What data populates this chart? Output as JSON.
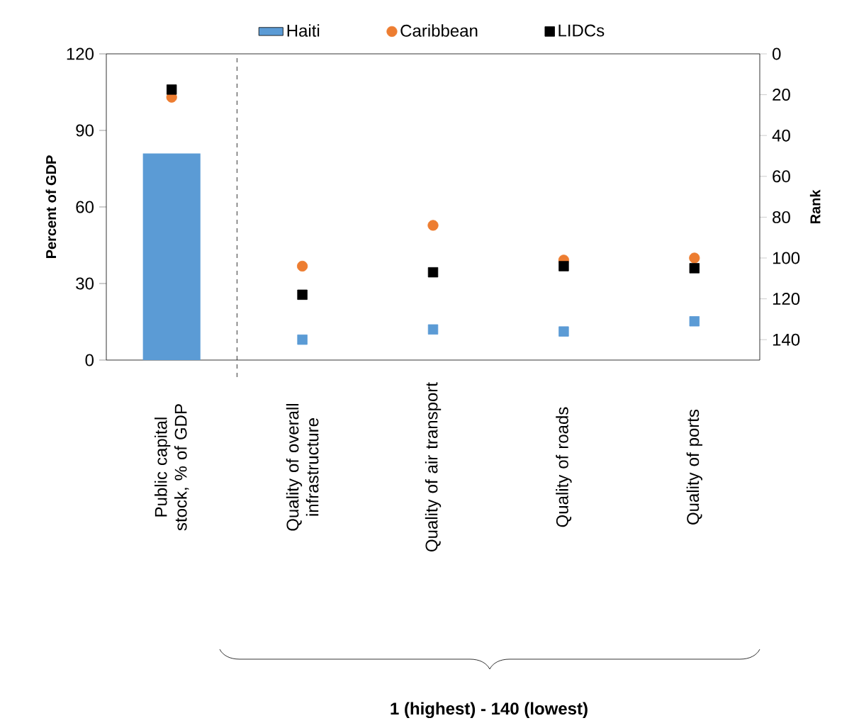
{
  "chart_data": {
    "type": "scatter",
    "categories": [
      "Public capital stock, % of GDP",
      "Quality of overall infrastructure",
      "Quality of air transport",
      "Quality of roads",
      "Quality of ports"
    ],
    "ylabel": "Percent of GDP",
    "y2label": "Rank",
    "annotations": [
      "1 (highest) - 140 (lowest)"
    ],
    "ylim": [
      0,
      120
    ],
    "yticks": [
      0,
      30,
      60,
      90,
      120
    ],
    "y2lim": [
      150,
      0
    ],
    "y2ticks": [
      0,
      20,
      40,
      60,
      80,
      100,
      120,
      140
    ],
    "legend": "top",
    "series": [
      {
        "name": "Haiti",
        "type": "bar",
        "color": "#5b9bd5",
        "values": [
          81,
          null,
          null,
          null,
          null
        ]
      },
      {
        "name": "Caribbean",
        "marker": "circle",
        "color": "#ed7d31",
        "values": [
          103,
          null,
          null,
          null,
          null
        ]
      },
      {
        "name": "LIDCs",
        "marker": "square",
        "color": "#000000",
        "values": [
          106,
          null,
          null,
          null,
          null
        ]
      },
      {
        "axis": "y2",
        "marker": "square",
        "color": "#5b9bd5",
        "values": [
          null,
          140,
          135,
          136,
          131
        ]
      },
      {
        "axis": "y2",
        "marker": "circle",
        "color": "#ed7d31",
        "values": [
          null,
          104,
          84,
          101,
          100
        ]
      },
      {
        "axis": "y2",
        "marker": "square",
        "color": "#000000",
        "values": [
          null,
          118,
          107,
          104,
          105
        ]
      }
    ]
  }
}
